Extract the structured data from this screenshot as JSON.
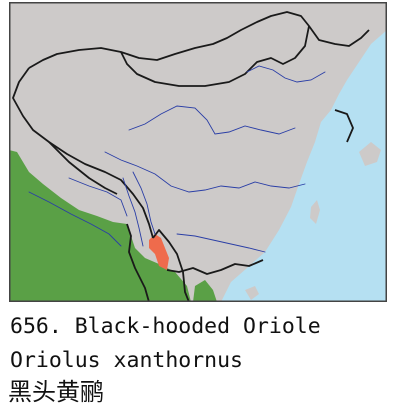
{
  "caption": {
    "title": "656. Black-hooded Oriole",
    "latin_name": "Oriolus xanthornus",
    "chinese_name": "黑头黄鹂"
  },
  "map": {
    "colors": {
      "water": "#b5e0f2",
      "land": "#cdcac9",
      "border": "#1a1a1a",
      "river": "#2a3ea6",
      "range_resident": "#5aa046",
      "range_china": "#ef6b4c",
      "frame": "#444444"
    }
  }
}
